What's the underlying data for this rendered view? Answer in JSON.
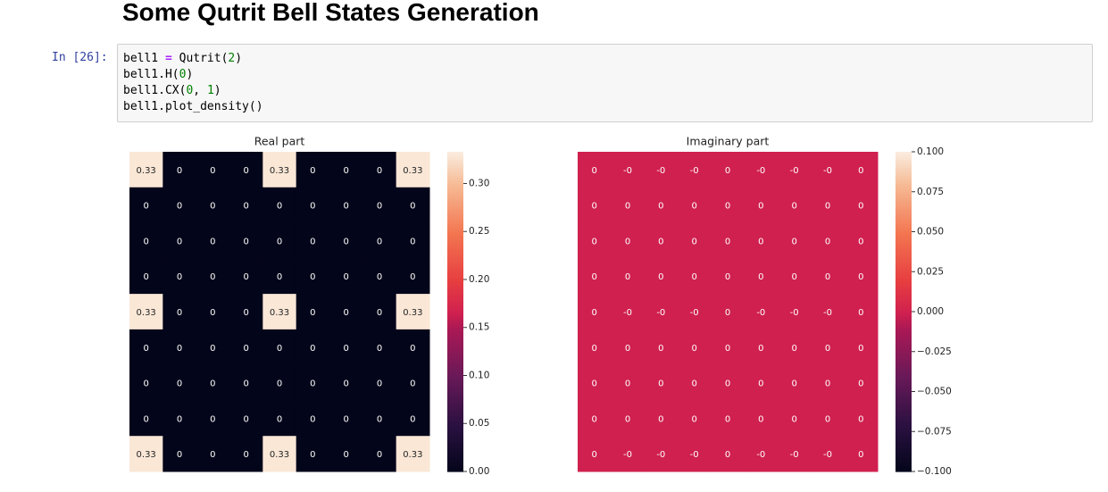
{
  "page": {
    "heading": "Some Qutrit Bell States Generation"
  },
  "cell": {
    "prompt": "In [26]:",
    "code": [
      [
        {
          "t": "bell1 "
        },
        {
          "t": "=",
          "c": "op"
        },
        {
          "t": " Qutrit("
        },
        {
          "t": "2",
          "c": "num"
        },
        {
          "t": ")"
        }
      ],
      [
        {
          "t": "bell1.H("
        },
        {
          "t": "0",
          "c": "num"
        },
        {
          "t": ")"
        }
      ],
      [
        {
          "t": "bell1.CX("
        },
        {
          "t": "0",
          "c": "num"
        },
        {
          "t": ", "
        },
        {
          "t": "1",
          "c": "num"
        },
        {
          "t": ")"
        }
      ],
      [
        {
          "t": "bell1.plot_density()"
        }
      ]
    ]
  },
  "chart_data": [
    {
      "type": "heatmap",
      "title": "Real part",
      "values": [
        [
          "0.33",
          "0",
          "0",
          "0",
          "0.33",
          "0",
          "0",
          "0",
          "0.33"
        ],
        [
          "0",
          "0",
          "0",
          "0",
          "0",
          "0",
          "0",
          "0",
          "0"
        ],
        [
          "0",
          "0",
          "0",
          "0",
          "0",
          "0",
          "0",
          "0",
          "0"
        ],
        [
          "0",
          "0",
          "0",
          "0",
          "0",
          "0",
          "0",
          "0",
          "0"
        ],
        [
          "0.33",
          "0",
          "0",
          "0",
          "0.33",
          "0",
          "0",
          "0",
          "0.33"
        ],
        [
          "0",
          "0",
          "0",
          "0",
          "0",
          "0",
          "0",
          "0",
          "0"
        ],
        [
          "0",
          "0",
          "0",
          "0",
          "0",
          "0",
          "0",
          "0",
          "0"
        ],
        [
          "0",
          "0",
          "0",
          "0",
          "0",
          "0",
          "0",
          "0",
          "0"
        ],
        [
          "0.33",
          "0",
          "0",
          "0",
          "0.33",
          "0",
          "0",
          "0",
          "0.33"
        ]
      ],
      "colorbar": {
        "ticks": [
          "0.00",
          "0.05",
          "0.10",
          "0.15",
          "0.20",
          "0.25",
          "0.30"
        ],
        "range": [
          0,
          0.333
        ]
      },
      "colormap": "rocket",
      "colors": {
        "high": "#fae8d9",
        "low": "#03051a"
      }
    },
    {
      "type": "heatmap",
      "title": "Imaginary part",
      "values": [
        [
          "0",
          "-0",
          "-0",
          "-0",
          "0",
          "-0",
          "-0",
          "-0",
          "0"
        ],
        [
          "0",
          "0",
          "0",
          "0",
          "0",
          "0",
          "0",
          "0",
          "0"
        ],
        [
          "0",
          "0",
          "0",
          "0",
          "0",
          "0",
          "0",
          "0",
          "0"
        ],
        [
          "0",
          "0",
          "0",
          "0",
          "0",
          "0",
          "0",
          "0",
          "0"
        ],
        [
          "0",
          "-0",
          "-0",
          "-0",
          "0",
          "-0",
          "-0",
          "-0",
          "0"
        ],
        [
          "0",
          "0",
          "0",
          "0",
          "0",
          "0",
          "0",
          "0",
          "0"
        ],
        [
          "0",
          "0",
          "0",
          "0",
          "0",
          "0",
          "0",
          "0",
          "0"
        ],
        [
          "0",
          "0",
          "0",
          "0",
          "0",
          "0",
          "0",
          "0",
          "0"
        ],
        [
          "0",
          "-0",
          "-0",
          "-0",
          "0",
          "-0",
          "-0",
          "-0",
          "0"
        ]
      ],
      "colorbar": {
        "ticks": [
          "0.100",
          "0.075",
          "0.050",
          "0.025",
          "0.000",
          "−0.025",
          "−0.050",
          "−0.075",
          "−0.100"
        ],
        "range": [
          -0.1,
          0.1
        ]
      },
      "colormap": "rocket",
      "colors": {
        "mid": "#d0204f"
      }
    }
  ]
}
